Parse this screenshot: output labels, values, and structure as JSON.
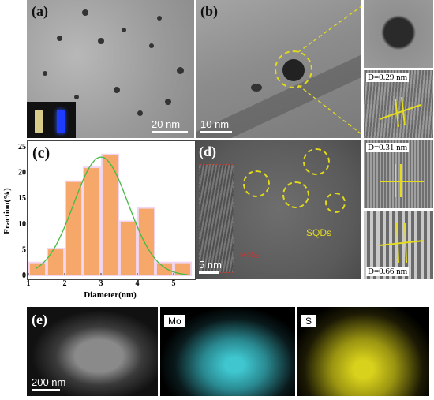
{
  "panels": {
    "a": {
      "letter": "(a)",
      "scale": "20 nm"
    },
    "b": {
      "letter": "(b)",
      "scale": "10 nm"
    },
    "c": {
      "letter": "(c)"
    },
    "d": {
      "letter": "(d)",
      "scale": "5 nm",
      "mos2_label": "MoS₂",
      "sqd_label": "SQDs"
    },
    "e": {
      "letter": "(e)",
      "scale": "200 nm",
      "map_mo": "Mo",
      "map_s": "S"
    }
  },
  "fringes": {
    "b": "D=0.29 nm",
    "d1": "D=0.31 nm",
    "d2": "D=0.66 nm"
  },
  "colors": {
    "bar_fill": "#f5a86a",
    "bar_edge": "#f2d6f0",
    "fit_line": "#44bb44",
    "highlight": "#e6dc1e",
    "mo_map": "#3fc6cf",
    "s_map": "#d9d21c"
  },
  "chart_data": {
    "type": "bar",
    "x": [
      1.25,
      1.75,
      2.25,
      2.75,
      3.25,
      3.75,
      4.25,
      4.75,
      5.25
    ],
    "values": [
      2.5,
      5.2,
      18.3,
      21.0,
      23.5,
      10.5,
      13.1,
      2.5,
      2.5
    ],
    "fit": "gaussian",
    "fit_center": 3.0,
    "fit_peak": 23.0,
    "fit_sigma": 0.75,
    "xlabel": "Diameter(nm)",
    "ylabel": "Fraction(%)",
    "xlim": [
      1,
      5.5
    ],
    "ylim": [
      0,
      25
    ],
    "xticks": [
      "1",
      "2",
      "3",
      "4",
      "5"
    ],
    "yticks": [
      "0",
      "5",
      "10",
      "15",
      "20",
      "25"
    ]
  }
}
